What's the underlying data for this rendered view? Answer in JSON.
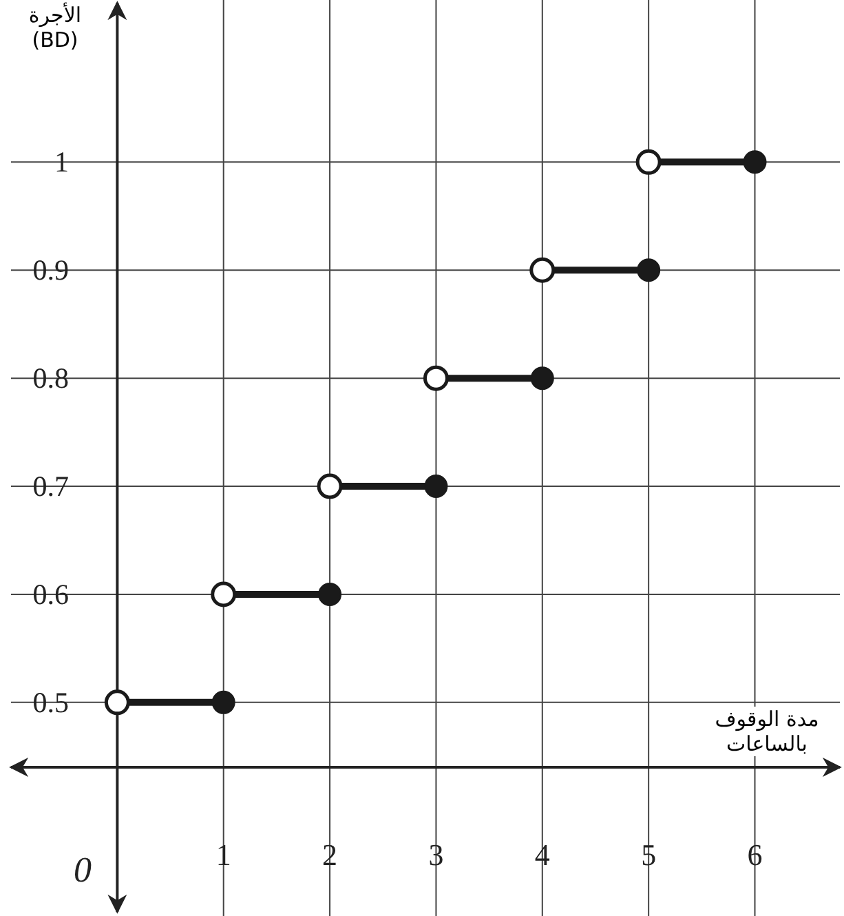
{
  "chart_data": {
    "type": "line",
    "xlabel": "مدة الوقوف بالساعات",
    "ylabel": "الأجرة (BD)",
    "annotations": [
      "0"
    ],
    "series": [
      {
        "color": "#1a1a1a",
        "x": [
          0,
          1
        ],
        "values": [
          0.5,
          0.5
        ]
      },
      {
        "color": "#1a1a1a",
        "x": [
          1,
          2
        ],
        "values": [
          0.6,
          0.6
        ]
      },
      {
        "color": "#1a1a1a",
        "x": [
          2,
          3
        ],
        "values": [
          0.7,
          0.7
        ]
      },
      {
        "color": "#1a1a1a",
        "x": [
          3,
          4
        ],
        "values": [
          0.8,
          0.8
        ]
      },
      {
        "color": "#1a1a1a",
        "x": [
          4,
          5
        ],
        "values": [
          0.9,
          0.9
        ]
      },
      {
        "color": "#1a1a1a",
        "x": [
          5,
          6
        ],
        "values": [
          1,
          1
        ]
      }
    ],
    "xlim": [
      -1,
      6.8
    ],
    "ylim": [
      0.44,
      1.15
    ],
    "xticks": [
      1,
      2,
      3,
      4,
      5,
      6
    ],
    "yticks": [
      0.5,
      0.6,
      0.7,
      0.8,
      0.9,
      1
    ],
    "grid": true,
    "marker": "circle"
  }
}
